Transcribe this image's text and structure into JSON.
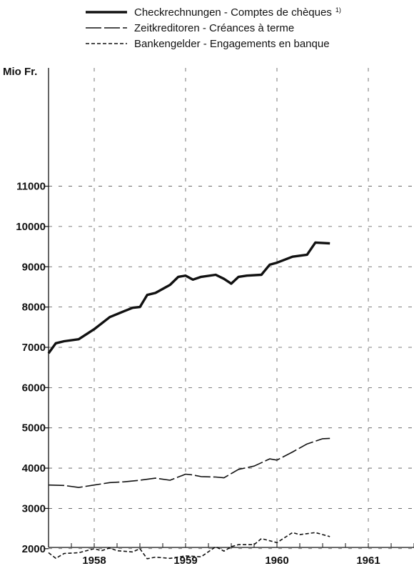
{
  "chart_data": {
    "type": "line",
    "ylabel": "Mio Fr.",
    "ylim": [
      0,
      12000
    ],
    "yticks": [
      1000,
      2000,
      3000,
      4000,
      5000,
      6000,
      7000,
      8000,
      9000,
      10000,
      11000
    ],
    "xlim": [
      1957.5,
      1961.5
    ],
    "xticks": [
      1958,
      1959,
      1960,
      1961
    ],
    "grid": "dashed",
    "legend_position": "top",
    "series": [
      {
        "name": "Checkrechnungen - Comptes de chèques",
        "name_superscript": "1)",
        "style": "solid-thick",
        "x": [
          1957.5,
          1957.58,
          1957.67,
          1957.83,
          1958.0,
          1958.17,
          1958.33,
          1958.42,
          1958.5,
          1958.58,
          1958.67,
          1958.83,
          1958.92,
          1959.0,
          1959.08,
          1959.17,
          1959.33,
          1959.42,
          1959.5,
          1959.58,
          1959.67,
          1959.83,
          1959.92,
          1960.0,
          1960.17,
          1960.33,
          1960.42,
          1960.58
        ],
        "values": [
          6850,
          7100,
          7150,
          7200,
          7450,
          7750,
          7900,
          7980,
          8000,
          8300,
          8350,
          8550,
          8750,
          8780,
          8680,
          8750,
          8800,
          8700,
          8580,
          8750,
          8780,
          8800,
          9050,
          9100,
          9250,
          9300,
          9600,
          9580
        ]
      },
      {
        "name": "Zeitkreditoren - Créances à terme",
        "style": "long-dash",
        "x": [
          1957.5,
          1957.67,
          1957.83,
          1958.0,
          1958.17,
          1958.33,
          1958.5,
          1958.67,
          1958.83,
          1959.0,
          1959.08,
          1959.17,
          1959.33,
          1959.42,
          1959.58,
          1959.75,
          1959.92,
          1960.0,
          1960.17,
          1960.33,
          1960.5,
          1960.58
        ],
        "values": [
          3580,
          3570,
          3520,
          3580,
          3640,
          3660,
          3700,
          3750,
          3700,
          3850,
          3830,
          3790,
          3780,
          3760,
          3970,
          4050,
          4230,
          4200,
          4400,
          4600,
          4730,
          4740
        ]
      },
      {
        "name": "Bankengelder - Engagements en banque",
        "style": "short-dash",
        "x": [
          1957.5,
          1957.58,
          1957.67,
          1957.83,
          1958.0,
          1958.08,
          1958.17,
          1958.25,
          1958.42,
          1958.5,
          1958.58,
          1958.67,
          1958.83,
          1959.0,
          1959.17,
          1959.33,
          1959.42,
          1959.5,
          1959.58,
          1959.75,
          1959.83,
          1960.0,
          1960.17,
          1960.25,
          1960.42,
          1960.58
        ],
        "values": [
          1900,
          1760,
          1880,
          1900,
          2000,
          1950,
          2020,
          1950,
          1920,
          2000,
          1750,
          1790,
          1760,
          1820,
          1800,
          2050,
          1940,
          2050,
          2100,
          2100,
          2250,
          2150,
          2400,
          2350,
          2400,
          2300
        ]
      }
    ]
  }
}
